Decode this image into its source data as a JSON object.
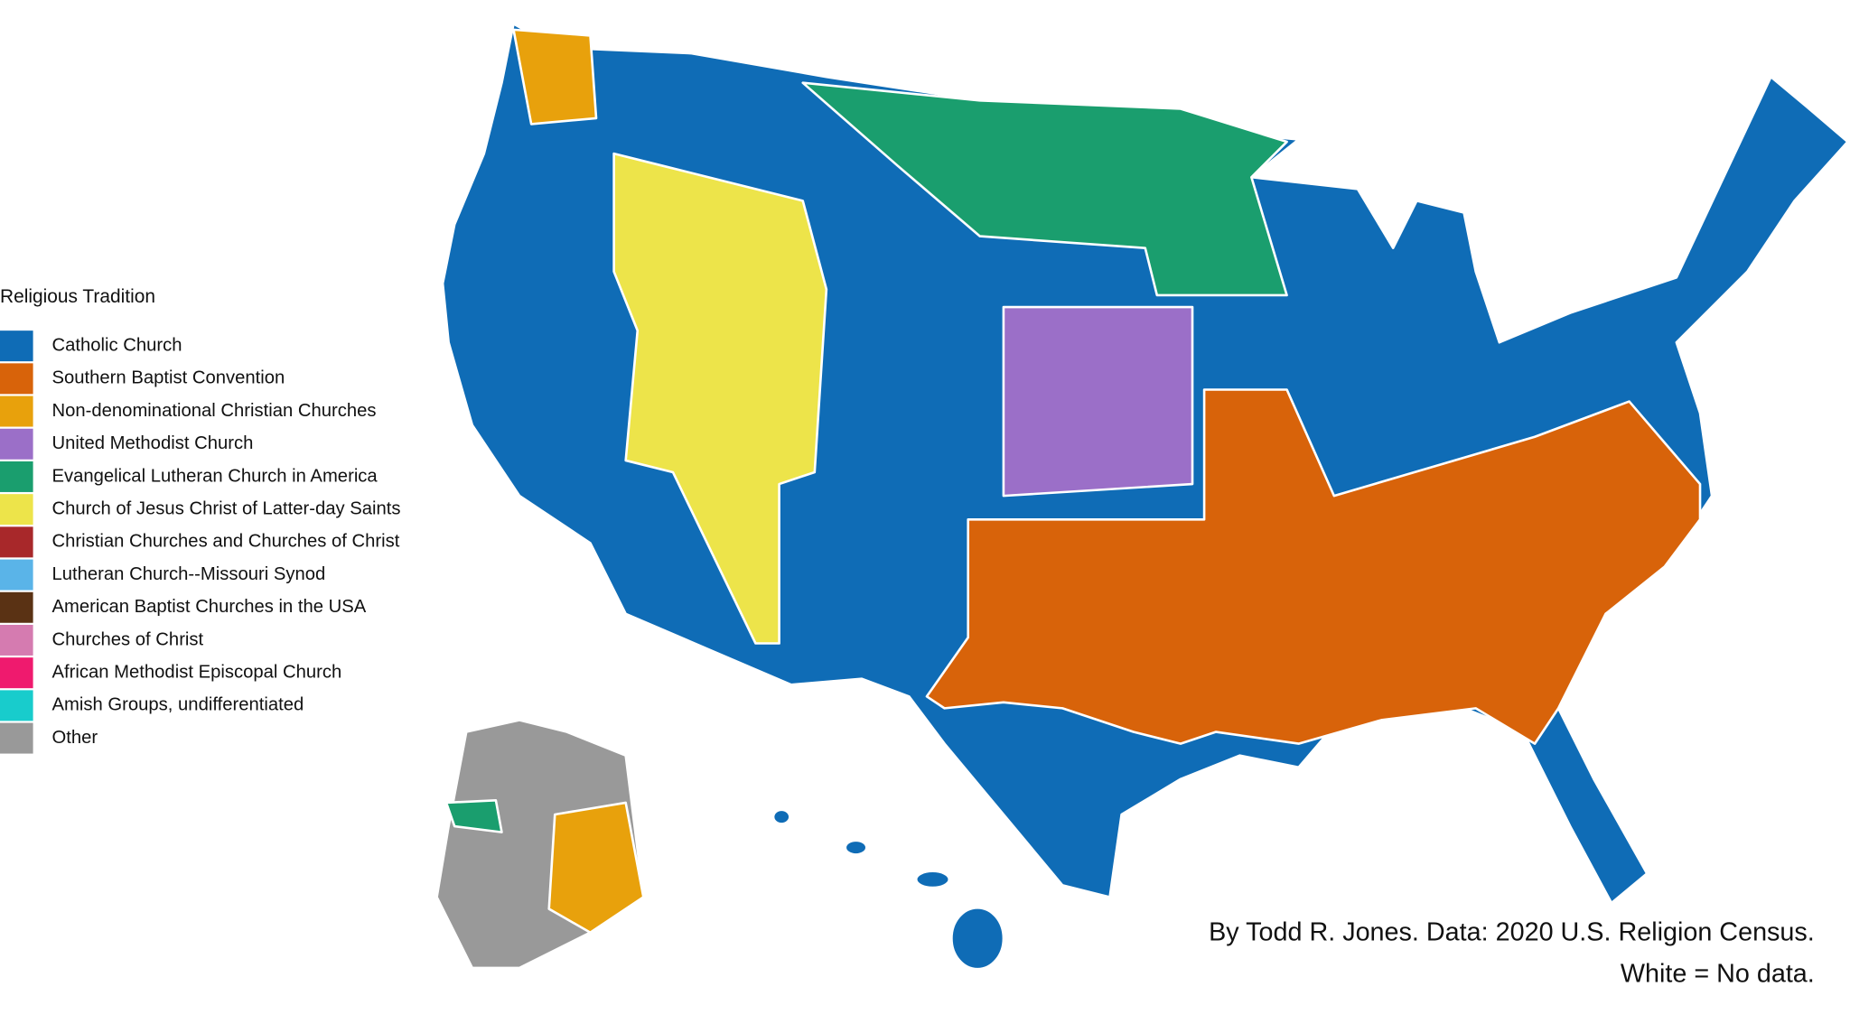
{
  "legend": {
    "title": "Religious Tradition",
    "items": [
      {
        "label": "Catholic Church",
        "color": "#0f6cb6"
      },
      {
        "label": "Southern Baptist Convention",
        "color": "#d8630a"
      },
      {
        "label": "Non-denominational Christian Churches",
        "color": "#e8a10c"
      },
      {
        "label": "United Methodist Church",
        "color": "#9b6fc8"
      },
      {
        "label": "Evangelical Lutheran Church in America",
        "color": "#1a9e6e"
      },
      {
        "label": "Church of Jesus Christ of Latter-day Saints",
        "color": "#ede44a"
      },
      {
        "label": "Christian Churches and Churches of Christ",
        "color": "#a8282a"
      },
      {
        "label": "Lutheran Church--Missouri Synod",
        "color": "#5ab4e8"
      },
      {
        "label": "American Baptist Churches in the USA",
        "color": "#5a3214"
      },
      {
        "label": "Churches of Christ",
        "color": "#d57bb0"
      },
      {
        "label": "African Methodist Episcopal Church",
        "color": "#ef1a6e"
      },
      {
        "label": "Amish Groups, undifferentiated",
        "color": "#18cccc"
      },
      {
        "label": "Other",
        "color": "#999999"
      }
    ]
  },
  "credit": [
    "By Todd R. Jones. Data: 2020 U.S. Religion Census.",
    "White = No data."
  ]
}
